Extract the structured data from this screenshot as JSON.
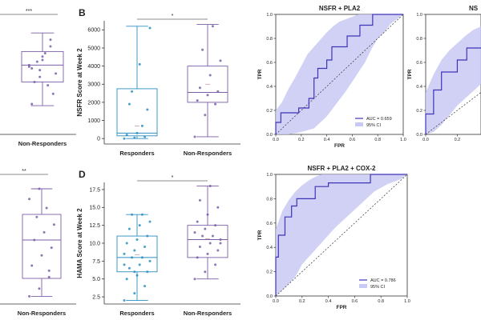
{
  "colors": {
    "responders": "#2a8fbf",
    "non_responders": "#7b5ea7",
    "roc_line": "#3d35b8",
    "ci_fill": "#c9c9f5",
    "bracket": "#666666"
  },
  "chart_data": [
    {
      "id": "A-top",
      "type": "box",
      "categories": [
        "Non-Responders"
      ],
      "significance": "***",
      "points": [
        [
          4.1,
          3.4,
          5.2,
          3.9,
          4.6,
          2.4,
          3.1,
          4.8,
          3.6,
          4.3,
          2.9,
          4.0,
          3.8,
          5.6,
          1.8,
          4.4
        ]
      ],
      "box": [
        {
          "whisker_low": 1.7,
          "q1": 3.1,
          "median": 4.1,
          "q3": 4.9,
          "whisker_high": 6.0
        }
      ],
      "ylim": [
        0,
        7
      ]
    },
    {
      "id": "B",
      "panel_label": "B",
      "type": "box",
      "title": "",
      "ylabel": "NSFR Score at Week 2",
      "xlabel": "",
      "categories": [
        "Responders",
        "Non-Responders"
      ],
      "y_ticks": [
        0,
        1000,
        2000,
        3000,
        4000,
        5000,
        6000
      ],
      "ylim": [
        -300,
        6500
      ],
      "significance": "*",
      "box": [
        {
          "whisker_low": 0,
          "q1": 150,
          "median": 300,
          "q3": 2750,
          "whisker_high": 6200,
          "mean": 700
        },
        {
          "whisker_low": 100,
          "q1": 2000,
          "median": 2550,
          "q3": 4000,
          "whisker_high": 6300,
          "mean": 3000
        }
      ],
      "points": [
        [
          0,
          50,
          100,
          200,
          300,
          1600,
          1900,
          4100,
          6100,
          2600,
          700
        ],
        [
          100,
          1300,
          1900,
          2100,
          2400,
          2600,
          2800,
          3500,
          4300,
          4900,
          6200
        ]
      ]
    },
    {
      "id": "C-bottom",
      "type": "box",
      "categories": [
        "Non-Responders"
      ],
      "significance": "**",
      "points": [
        [
          6.6,
          7.2,
          8.1,
          9.0,
          9.8,
          10.4,
          11.0,
          11.6,
          12.2,
          12.8,
          13.5,
          14.2,
          15.0,
          8.6
        ]
      ],
      "box": [
        {
          "whisker_low": 6.6,
          "q1": 8.0,
          "median": 11.0,
          "q3": 13.0,
          "whisker_high": 15.0
        }
      ],
      "ylim": [
        6,
        16
      ]
    },
    {
      "id": "D",
      "panel_label": "D",
      "type": "box",
      "ylabel": "HAMA Score at Week 2",
      "xlabel": "",
      "categories": [
        "Responders",
        "Non-Responders"
      ],
      "y_ticks": [
        2.5,
        5.0,
        7.5,
        10.0,
        12.5,
        15.0,
        17.5
      ],
      "y_tick_labels": [
        "2.5",
        "5.0",
        "7.5",
        "10.0",
        "12.5",
        "15.0",
        "17.5"
      ],
      "ylim": [
        1.5,
        18.5
      ],
      "significance": "*",
      "box": [
        {
          "whisker_low": 2,
          "q1": 6,
          "median": 8,
          "q3": 11,
          "whisker_high": 14,
          "mean": 8.4
        },
        {
          "whisker_low": 5,
          "q1": 8,
          "median": 10.5,
          "q3": 12.5,
          "whisker_high": 18,
          "mean": 10.6
        }
      ],
      "points": [
        [
          2,
          3,
          4,
          5,
          5.5,
          6,
          6.5,
          7,
          7.5,
          8,
          8,
          8.5,
          9,
          9.5,
          10,
          10.5,
          11,
          12,
          12.5,
          13,
          14,
          14,
          7,
          6
        ],
        [
          5,
          6,
          7,
          8,
          8.5,
          9,
          9.5,
          10,
          10.5,
          11,
          11,
          11.5,
          12,
          12.5,
          13,
          14,
          15,
          16,
          18,
          10
        ]
      ]
    },
    {
      "id": "roc-nsfr-pla2",
      "type": "line",
      "title": "NSFR + PLA2",
      "xlabel": "FPR",
      "ylabel": "TPR",
      "xlim": [
        0,
        1
      ],
      "ylim": [
        0,
        1
      ],
      "ticks": [
        0.0,
        0.2,
        0.4,
        0.6,
        0.8,
        1.0
      ],
      "tick_labels": [
        "0.0",
        "0.2",
        "0.4",
        "0.6",
        "0.8",
        "1.0"
      ],
      "legend": {
        "position": "bottom-right",
        "line_label": "AUC = 0.659",
        "band_label": "95% CI"
      },
      "roc": [
        [
          0,
          0
        ],
        [
          0,
          0.1
        ],
        [
          0.04,
          0.1
        ],
        [
          0.04,
          0.18
        ],
        [
          0.18,
          0.18
        ],
        [
          0.18,
          0.22
        ],
        [
          0.26,
          0.22
        ],
        [
          0.26,
          0.3
        ],
        [
          0.3,
          0.3
        ],
        [
          0.3,
          0.47
        ],
        [
          0.33,
          0.47
        ],
        [
          0.33,
          0.55
        ],
        [
          0.4,
          0.55
        ],
        [
          0.4,
          0.62
        ],
        [
          0.44,
          0.62
        ],
        [
          0.44,
          0.73
        ],
        [
          0.56,
          0.73
        ],
        [
          0.56,
          0.82
        ],
        [
          0.66,
          0.82
        ],
        [
          0.66,
          0.91
        ],
        [
          0.76,
          0.91
        ],
        [
          0.76,
          1.0
        ],
        [
          1.0,
          1.0
        ]
      ],
      "ci_upper": [
        [
          0,
          0.2
        ],
        [
          0.05,
          0.27
        ],
        [
          0.1,
          0.38
        ],
        [
          0.15,
          0.47
        ],
        [
          0.2,
          0.57
        ],
        [
          0.25,
          0.67
        ],
        [
          0.3,
          0.73
        ],
        [
          0.35,
          0.79
        ],
        [
          0.4,
          0.85
        ],
        [
          0.45,
          0.9
        ],
        [
          0.5,
          0.94
        ],
        [
          0.55,
          0.96
        ],
        [
          0.6,
          0.98
        ],
        [
          0.65,
          1.0
        ],
        [
          1.0,
          1.0
        ]
      ],
      "ci_lower": [
        [
          1.0,
          1.0
        ],
        [
          0.9,
          0.92
        ],
        [
          0.85,
          0.85
        ],
        [
          0.8,
          0.8
        ],
        [
          0.75,
          0.71
        ],
        [
          0.7,
          0.6
        ],
        [
          0.65,
          0.52
        ],
        [
          0.6,
          0.44
        ],
        [
          0.55,
          0.36
        ],
        [
          0.5,
          0.29
        ],
        [
          0.45,
          0.22
        ],
        [
          0.4,
          0.15
        ],
        [
          0.35,
          0.1
        ],
        [
          0.3,
          0.05
        ],
        [
          0.2,
          0.02
        ],
        [
          0.1,
          0
        ],
        [
          0,
          0
        ]
      ]
    },
    {
      "id": "roc-partial",
      "type": "line",
      "title": "NS",
      "xlabel": "",
      "ylabel": "TPR",
      "xlim": [
        0,
        0.35
      ],
      "ylim": [
        0,
        1
      ],
      "ticks": [
        0.0,
        0.2,
        0.4,
        0.6,
        0.8,
        1.0
      ],
      "tick_labels": [
        "0.0",
        "0.2",
        "0.4",
        "0.6",
        "0.8",
        "1.0"
      ],
      "x_tick_labels": [
        "0.0",
        "0.2"
      ],
      "roc": [
        [
          0,
          0
        ],
        [
          0,
          0.17
        ],
        [
          0.05,
          0.17
        ],
        [
          0.05,
          0.37
        ],
        [
          0.1,
          0.37
        ],
        [
          0.1,
          0.52
        ],
        [
          0.2,
          0.52
        ],
        [
          0.2,
          0.62
        ],
        [
          0.26,
          0.62
        ],
        [
          0.26,
          0.72
        ],
        [
          0.35,
          0.72
        ]
      ],
      "ci_upper": [
        [
          0,
          0.35
        ],
        [
          0.05,
          0.5
        ],
        [
          0.1,
          0.62
        ],
        [
          0.15,
          0.7
        ],
        [
          0.2,
          0.76
        ],
        [
          0.25,
          0.82
        ],
        [
          0.3,
          0.87
        ],
        [
          0.35,
          0.9
        ]
      ],
      "ci_lower": [
        [
          0.35,
          0.42
        ],
        [
          0.3,
          0.36
        ],
        [
          0.25,
          0.3
        ],
        [
          0.2,
          0.24
        ],
        [
          0.15,
          0.16
        ],
        [
          0.1,
          0.08
        ],
        [
          0.05,
          0.02
        ],
        [
          0,
          0
        ]
      ]
    },
    {
      "id": "roc-nsfr-pla2-cox2",
      "type": "line",
      "title": "NSFR + PLA2 + COX-2",
      "xlabel": "FPR",
      "ylabel": "TPR",
      "xlim": [
        0,
        1
      ],
      "ylim": [
        0,
        1
      ],
      "ticks": [
        0.0,
        0.2,
        0.4,
        0.6,
        0.8,
        1.0
      ],
      "tick_labels": [
        "0.0",
        "0.2",
        "0.4",
        "0.6",
        "0.8",
        "1.0"
      ],
      "legend": {
        "position": "bottom-right",
        "line_label": "AUC = 0.786",
        "band_label": "95% CI"
      },
      "roc": [
        [
          0,
          0
        ],
        [
          0,
          0.32
        ],
        [
          0.02,
          0.32
        ],
        [
          0.02,
          0.5
        ],
        [
          0.07,
          0.5
        ],
        [
          0.07,
          0.65
        ],
        [
          0.12,
          0.65
        ],
        [
          0.12,
          0.74
        ],
        [
          0.16,
          0.74
        ],
        [
          0.16,
          0.8
        ],
        [
          0.3,
          0.8
        ],
        [
          0.3,
          0.9
        ],
        [
          0.4,
          0.9
        ],
        [
          0.4,
          0.93
        ],
        [
          0.72,
          0.93
        ],
        [
          0.72,
          1.0
        ],
        [
          1.0,
          1.0
        ]
      ],
      "ci_upper": [
        [
          0,
          0.55
        ],
        [
          0.05,
          0.7
        ],
        [
          0.1,
          0.79
        ],
        [
          0.15,
          0.86
        ],
        [
          0.2,
          0.91
        ],
        [
          0.25,
          0.95
        ],
        [
          0.3,
          0.98
        ],
        [
          0.35,
          1.0
        ],
        [
          1.0,
          1.0
        ]
      ],
      "ci_lower": [
        [
          1.0,
          1.0
        ],
        [
          0.95,
          0.96
        ],
        [
          0.85,
          0.92
        ],
        [
          0.75,
          0.86
        ],
        [
          0.65,
          0.76
        ],
        [
          0.55,
          0.66
        ],
        [
          0.45,
          0.56
        ],
        [
          0.4,
          0.5
        ],
        [
          0.35,
          0.44
        ],
        [
          0.3,
          0.38
        ],
        [
          0.25,
          0.32
        ],
        [
          0.2,
          0.26
        ],
        [
          0.15,
          0.16
        ],
        [
          0.1,
          0.1
        ],
        [
          0.05,
          0.05
        ],
        [
          0,
          0
        ]
      ]
    }
  ]
}
